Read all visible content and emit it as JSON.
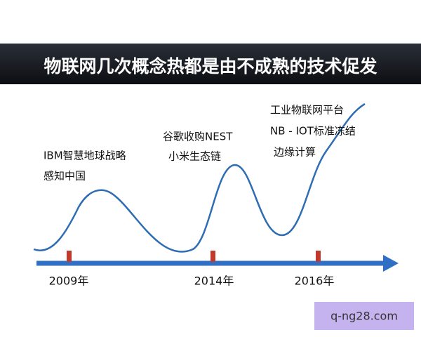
{
  "title": "物联网几次概念热都是由不成熟的技术促发",
  "events": [
    {
      "year": "2009年",
      "lines": [
        "IBM智慧地球战略",
        "感知中国"
      ]
    },
    {
      "year": "2014年",
      "lines": [
        "谷歌收购NEST",
        "小米生态链"
      ]
    },
    {
      "year": "2016年",
      "lines": [
        "工业物联网平台",
        "NB - IOT标准冻结",
        "边缘计算"
      ]
    }
  ],
  "watermark": "q-ng28.com"
}
